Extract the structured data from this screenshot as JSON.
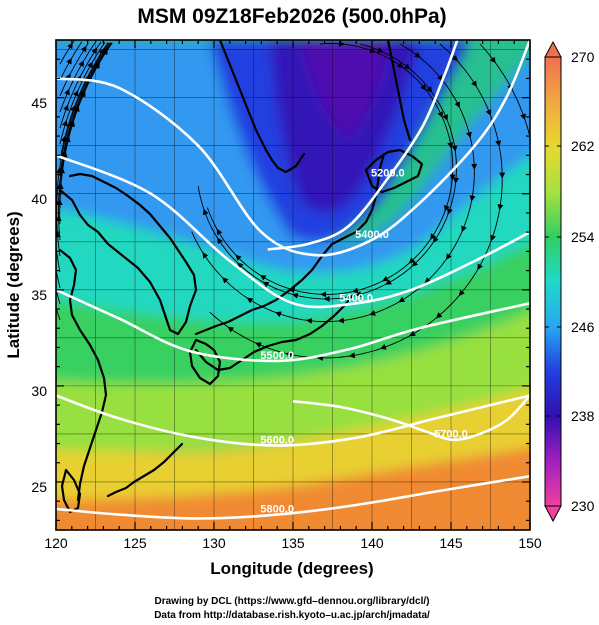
{
  "title": "MSM 09Z18Feb2026 (500.0hPa)",
  "map": {
    "xlabel": "Longitude (degrees)",
    "ylabel": "Latitude  (degrees)",
    "xlim": [
      120,
      150
    ],
    "ylim": [
      22.5,
      48
    ],
    "x_ticks": [
      "120",
      "125",
      "130",
      "135",
      "140",
      "145",
      "150"
    ],
    "y_ticks": [
      "25",
      "30",
      "35",
      "40",
      "45"
    ],
    "grid": true,
    "shading": "temperature",
    "vectors": "wind streamlines",
    "contour_color": "#ffffff"
  },
  "colorbar": {
    "labels": [
      "270",
      "262",
      "254",
      "246",
      "238",
      "230"
    ],
    "range": [
      230,
      270
    ],
    "colors": [
      "#f07050",
      "#f0a840",
      "#e8d830",
      "#a8e040",
      "#30d060",
      "#20d8c8",
      "#28a8f0",
      "#2040e0",
      "#3010b0",
      "#a020c0",
      "#f040a0"
    ]
  },
  "contours": [
    {
      "label": "5200.0",
      "lat": [
        37.1,
        37.4,
        38.3,
        40.8,
        43.5,
        46.2,
        48.0
      ],
      "lon": [
        133.4,
        136.0,
        138.5,
        141.0,
        143.2,
        144.6,
        145.4
      ]
    },
    {
      "label": "5400.0",
      "lat": [
        46.0,
        45.5,
        42.5,
        38.0,
        36.8,
        37.6,
        39.5,
        42.5,
        45.0,
        48.0
      ],
      "lon": [
        120.0,
        124.0,
        129.0,
        133.0,
        136.5,
        140.0,
        143.0,
        146.5,
        148.5,
        150.0
      ]
    },
    {
      "label": "5400.0",
      "lat": [
        42.0,
        40.0,
        36.5,
        34.3,
        34.3,
        35.0,
        36.5,
        38.0
      ],
      "lon": [
        120.0,
        126.0,
        131.0,
        135.0,
        139.0,
        142.5,
        146.5,
        150.0
      ]
    },
    {
      "label": "5500.0",
      "lat": [
        35.0,
        33.5,
        31.8,
        31.3,
        31.9,
        33.0,
        34.3
      ],
      "lon": [
        120.0,
        124.0,
        128.5,
        134.0,
        138.5,
        143.0,
        150.0
      ]
    },
    {
      "label": "5600.0",
      "lat": [
        29.5,
        28.3,
        27.3,
        26.9,
        27.3,
        28.3,
        29.5
      ],
      "lon": [
        120.0,
        124.0,
        129.0,
        134.0,
        139.0,
        144.0,
        150.0
      ]
    },
    {
      "label": "5700.0",
      "lat": [
        29.2,
        28.9,
        28.3,
        27.6,
        27.2,
        27.4,
        28.2,
        29.5
      ],
      "lon": [
        135.0,
        138.0,
        141.0,
        143.5,
        145.0,
        146.5,
        148.5,
        150.0
      ]
    },
    {
      "label": "5800.0",
      "lat": [
        23.6,
        23.3,
        23.1,
        23.3,
        23.8,
        24.5,
        25.3
      ],
      "lon": [
        120.0,
        124.0,
        129.0,
        134.0,
        139.0,
        144.0,
        150.0
      ]
    }
  ],
  "credits": {
    "line1": "Drawing by DCL (https://www.gfd–dennou.org/library/dcl/)",
    "line2": "Data from http://database.rish.kyoto–u.ac.jp/arch/jmadata/"
  }
}
